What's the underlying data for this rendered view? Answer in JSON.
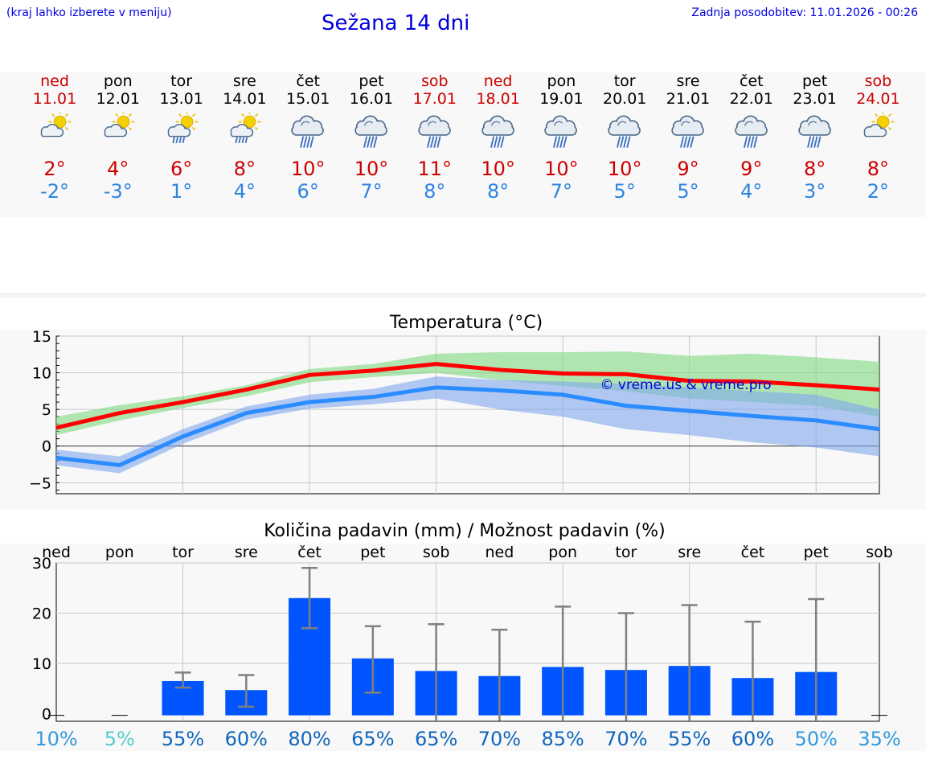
{
  "header": {
    "note": "(kraj lahko izberete v meniju)",
    "title": "Sežana 14 dni",
    "updated": "Zadnja posodobitev: 11.01.2026 - 00:26"
  },
  "days": [
    {
      "name": "ned",
      "date": "11.01",
      "weekend": true,
      "icon": "sun-cloud-icon",
      "max": "2°",
      "min": "-2°"
    },
    {
      "name": "pon",
      "date": "12.01",
      "weekend": false,
      "icon": "sun-cloud-icon",
      "max": "4°",
      "min": "-3°"
    },
    {
      "name": "tor",
      "date": "13.01",
      "weekend": false,
      "icon": "sun-cloud-rain-icon",
      "max": "6°",
      "min": "1°"
    },
    {
      "name": "sre",
      "date": "14.01",
      "weekend": false,
      "icon": "sun-cloud-rain-icon",
      "max": "8°",
      "min": "4°"
    },
    {
      "name": "čet",
      "date": "15.01",
      "weekend": false,
      "icon": "rain-cloud-icon",
      "max": "10°",
      "min": "6°"
    },
    {
      "name": "pet",
      "date": "16.01",
      "weekend": false,
      "icon": "rain-cloud-icon",
      "max": "10°",
      "min": "7°"
    },
    {
      "name": "sob",
      "date": "17.01",
      "weekend": true,
      "icon": "rain-cloud-icon",
      "max": "11°",
      "min": "8°"
    },
    {
      "name": "ned",
      "date": "18.01",
      "weekend": true,
      "icon": "rain-cloud-icon",
      "max": "10°",
      "min": "8°"
    },
    {
      "name": "pon",
      "date": "19.01",
      "weekend": false,
      "icon": "rain-cloud-icon",
      "max": "10°",
      "min": "7°"
    },
    {
      "name": "tor",
      "date": "20.01",
      "weekend": false,
      "icon": "rain-cloud-icon",
      "max": "10°",
      "min": "5°"
    },
    {
      "name": "sre",
      "date": "21.01",
      "weekend": false,
      "icon": "rain-cloud-icon",
      "max": "9°",
      "min": "5°"
    },
    {
      "name": "čet",
      "date": "22.01",
      "weekend": false,
      "icon": "rain-cloud-icon",
      "max": "9°",
      "min": "4°"
    },
    {
      "name": "pet",
      "date": "23.01",
      "weekend": false,
      "icon": "rain-cloud-icon",
      "max": "8°",
      "min": "3°"
    },
    {
      "name": "sob",
      "date": "24.01",
      "weekend": true,
      "icon": "sun-cloud-icon",
      "max": "8°",
      "min": "2°"
    }
  ],
  "colors": {
    "weekend": "#cc0000",
    "max_line": "#ff0000",
    "min_line": "#2a8cff",
    "max_band": "#7fd87f",
    "min_band": "#7fa6ec",
    "bar": "#0055ff",
    "error_bar": "#808080",
    "watermark": "#0000dd"
  },
  "chart_data": [
    {
      "type": "line",
      "title": "Temperatura (°C)",
      "ylim": [
        -6.5,
        15
      ],
      "yticks": [
        -5,
        0,
        5,
        10,
        15
      ],
      "ytick_labels": [
        "−5",
        "0",
        "5",
        "10",
        "15"
      ],
      "watermark": "© vreme.us & vreme.pro",
      "series": [
        {
          "name": "max",
          "values": [
            2.5,
            4.5,
            6.0,
            7.7,
            9.7,
            10.3,
            11.2,
            10.4,
            9.9,
            9.8,
            8.9,
            8.8,
            8.3,
            7.7
          ],
          "band_low": [
            1.5,
            3.5,
            5.2,
            6.8,
            8.7,
            9.4,
            10.0,
            9.0,
            8.2,
            7.5,
            6.5,
            6.0,
            5.5,
            4.0
          ],
          "band_high": [
            4.0,
            5.6,
            6.8,
            8.3,
            10.5,
            11.2,
            12.6,
            12.8,
            12.8,
            12.9,
            12.3,
            12.6,
            12.1,
            11.5
          ]
        },
        {
          "name": "min",
          "values": [
            -1.6,
            -2.6,
            1.3,
            4.5,
            6.0,
            6.7,
            8.0,
            7.6,
            7.0,
            5.5,
            4.8,
            4.1,
            3.5,
            2.3
          ],
          "band_low": [
            -2.6,
            -3.7,
            0.3,
            3.6,
            5.1,
            5.7,
            6.5,
            5.0,
            4.0,
            2.3,
            1.5,
            0.5,
            -0.2,
            -1.4
          ],
          "band_high": [
            -0.5,
            -1.4,
            2.3,
            5.4,
            7.0,
            7.8,
            9.5,
            9.0,
            8.8,
            8.5,
            8.0,
            7.5,
            7.0,
            5.0
          ]
        }
      ]
    },
    {
      "type": "bar",
      "title": "Količina padavin (mm) / Možnost padavin (%)",
      "ylim": [
        -1.5,
        30
      ],
      "yticks": [
        0,
        10,
        20,
        30
      ],
      "ytick_labels": [
        "0",
        "10",
        "20",
        "30"
      ],
      "categories": [
        "ned",
        "pon",
        "tor",
        "sre",
        "čet",
        "pet",
        "sob",
        "ned",
        "pon",
        "tor",
        "sre",
        "čet",
        "pet",
        "sob"
      ],
      "values": [
        0,
        0,
        6.5,
        4.7,
        23,
        11,
        8.5,
        7.5,
        9.3,
        8.7,
        9.5,
        7.1,
        8.3,
        0
      ],
      "err_low": [
        0,
        0,
        5.2,
        1.4,
        17,
        4.2,
        0,
        0,
        0,
        0,
        0,
        0,
        0,
        0
      ],
      "err_high": [
        0,
        0,
        8.2,
        7.7,
        29,
        17.4,
        17.8,
        16.7,
        21.3,
        20,
        21.6,
        18.3,
        22.8,
        0
      ],
      "probability": [
        "10%",
        "5%",
        "55%",
        "60%",
        "80%",
        "65%",
        "65%",
        "70%",
        "85%",
        "70%",
        "55%",
        "60%",
        "50%",
        "35%"
      ],
      "probability_colors": [
        "#3399dd",
        "#55cccc",
        "#1166bb",
        "#1166bb",
        "#1166bb",
        "#1166bb",
        "#1166bb",
        "#1166bb",
        "#1166bb",
        "#1166bb",
        "#1166bb",
        "#1166bb",
        "#3399dd",
        "#3399dd"
      ]
    }
  ]
}
